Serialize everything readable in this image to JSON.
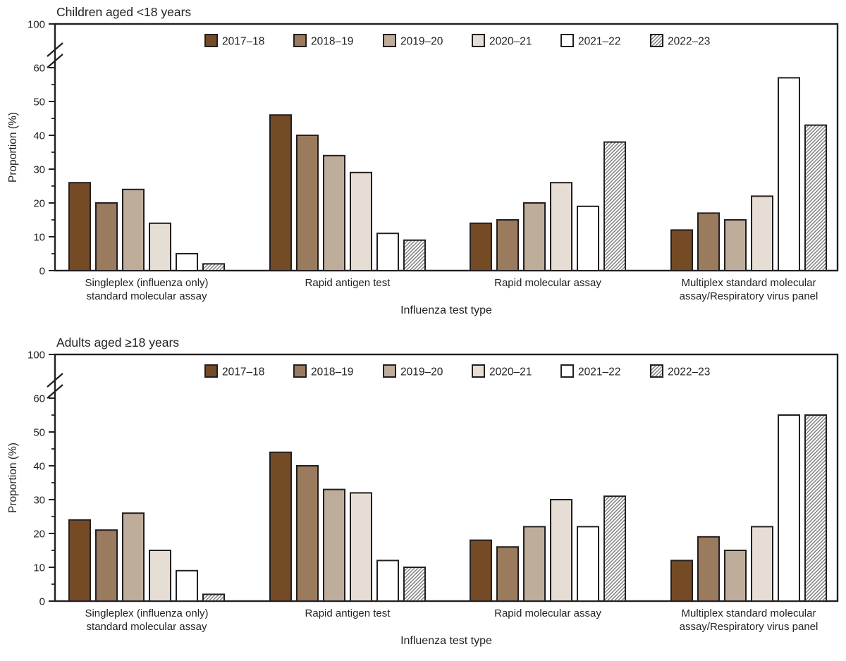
{
  "figure": {
    "background": "#ffffff",
    "ink_color": "#231f20",
    "hatch_line_color": "#7a7a7a"
  },
  "chart_data": [
    {
      "type": "bar",
      "panel": "children",
      "title": "Children aged <18 years",
      "xlabel": "Influenza test type",
      "ylabel": "Proportion (%)",
      "ylim": [
        0,
        100
      ],
      "axis_break_between": [
        60,
        100
      ],
      "y_major_ticks": [
        0,
        10,
        20,
        30,
        40,
        50,
        60,
        100
      ],
      "y_minor_ticks": [
        5,
        15,
        25,
        35,
        45,
        55
      ],
      "grid": false,
      "legend_position": "top-center-inside",
      "categories": [
        {
          "label_lines": [
            "Singleplex (influenza only)",
            "standard molecular assay"
          ]
        },
        {
          "label_lines": [
            "Rapid antigen test"
          ]
        },
        {
          "label_lines": [
            "Rapid molecular assay"
          ]
        },
        {
          "label_lines": [
            "Multiplex standard molecular",
            "assay/Respiratory virus panel"
          ]
        }
      ],
      "series": [
        {
          "name": "2017–18",
          "fill": "#744B25",
          "pattern": "solid",
          "values": [
            26,
            46,
            14,
            12
          ]
        },
        {
          "name": "2018–19",
          "fill": "#9A7B5D",
          "pattern": "solid",
          "values": [
            20,
            40,
            15,
            17
          ]
        },
        {
          "name": "2019–20",
          "fill": "#BFAD9B",
          "pattern": "solid",
          "values": [
            24,
            34,
            20,
            15
          ]
        },
        {
          "name": "2020–21",
          "fill": "#E6DED5",
          "pattern": "solid",
          "values": [
            14,
            29,
            26,
            22
          ]
        },
        {
          "name": "2021–22",
          "fill": "#FFFFFF",
          "pattern": "solid",
          "values": [
            5,
            11,
            19,
            57
          ]
        },
        {
          "name": "2022–23",
          "fill": "#FFFFFF",
          "pattern": "diagonal-hatch",
          "values": [
            2,
            9,
            38,
            43
          ]
        }
      ]
    },
    {
      "type": "bar",
      "panel": "adults",
      "title": "Adults aged ≥18 years",
      "xlabel": "Influenza test type",
      "ylabel": "Proportion (%)",
      "ylim": [
        0,
        100
      ],
      "axis_break_between": [
        60,
        100
      ],
      "y_major_ticks": [
        0,
        10,
        20,
        30,
        40,
        50,
        60,
        100
      ],
      "y_minor_ticks": [
        5,
        15,
        25,
        35,
        45,
        55
      ],
      "grid": false,
      "legend_position": "top-center-inside",
      "categories": [
        {
          "label_lines": [
            "Singleplex (influenza only)",
            "standard molecular assay"
          ]
        },
        {
          "label_lines": [
            "Rapid antigen test"
          ]
        },
        {
          "label_lines": [
            "Rapid molecular assay"
          ]
        },
        {
          "label_lines": [
            "Multiplex standard molecular",
            "assay/Respiratory virus panel"
          ]
        }
      ],
      "series": [
        {
          "name": "2017–18",
          "fill": "#744B25",
          "pattern": "solid",
          "values": [
            24,
            44,
            18,
            12
          ]
        },
        {
          "name": "2018–19",
          "fill": "#9A7B5D",
          "pattern": "solid",
          "values": [
            21,
            40,
            16,
            19
          ]
        },
        {
          "name": "2019–20",
          "fill": "#BFAD9B",
          "pattern": "solid",
          "values": [
            26,
            33,
            22,
            15
          ]
        },
        {
          "name": "2020–21",
          "fill": "#E6DED5",
          "pattern": "solid",
          "values": [
            15,
            32,
            30,
            22
          ]
        },
        {
          "name": "2021–22",
          "fill": "#FFFFFF",
          "pattern": "solid",
          "values": [
            9,
            12,
            22,
            55
          ]
        },
        {
          "name": "2022–23",
          "fill": "#FFFFFF",
          "pattern": "diagonal-hatch",
          "values": [
            2,
            10,
            31,
            55
          ]
        }
      ]
    }
  ]
}
